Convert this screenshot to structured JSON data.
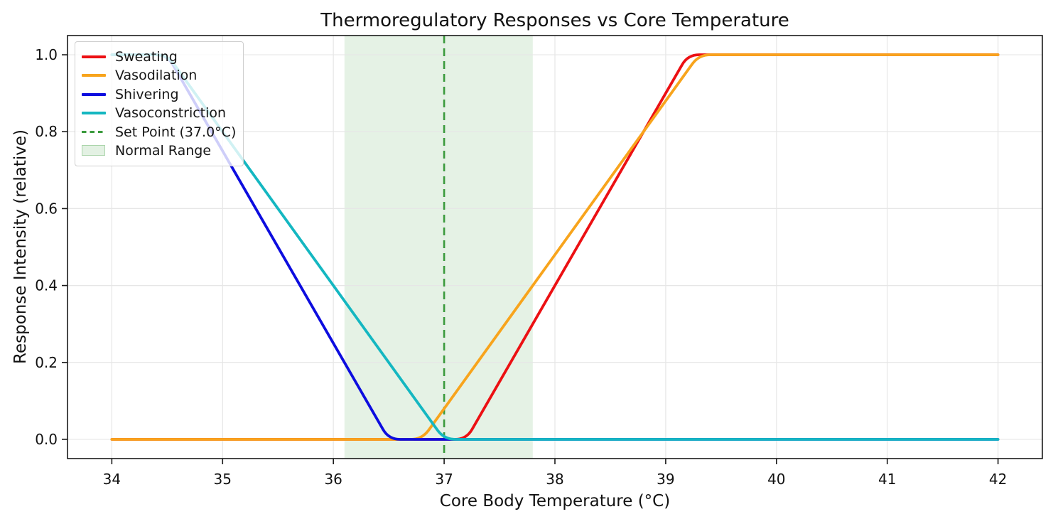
{
  "chart_data": {
    "type": "line",
    "title": "Thermoregulatory Responses vs Core Temperature",
    "xlabel": "Core Body Temperature (°C)",
    "ylabel": "Response Intensity (relative)",
    "xlim": [
      33.6,
      42.4
    ],
    "ylim": [
      -0.05,
      1.05
    ],
    "xticks": [
      "34",
      "35",
      "36",
      "37",
      "38",
      "39",
      "40",
      "41",
      "42"
    ],
    "yticks": [
      "0.0",
      "0.2",
      "0.4",
      "0.6",
      "0.8",
      "1.0"
    ],
    "grid": true,
    "legend_position": "upper left",
    "series": [
      {
        "name": "Sweating",
        "color": "#ec1013",
        "points": [
          [
            34,
            0
          ],
          [
            37.2,
            0
          ],
          [
            39.2,
            1
          ],
          [
            42,
            1
          ]
        ]
      },
      {
        "name": "Vasodilation",
        "color": "#f8a41c",
        "points": [
          [
            34,
            0
          ],
          [
            36.8,
            0
          ],
          [
            39.3,
            1
          ],
          [
            42,
            1
          ]
        ]
      },
      {
        "name": "Shivering",
        "color": "#0d0ddf",
        "points": [
          [
            34,
            1
          ],
          [
            34.5,
            1
          ],
          [
            36.5,
            0
          ],
          [
            42,
            0
          ]
        ]
      },
      {
        "name": "Vasoconstriction",
        "color": "#14b7c1",
        "points": [
          [
            34,
            1
          ],
          [
            34.5,
            1
          ],
          [
            37.0,
            0
          ],
          [
            42,
            0
          ]
        ]
      }
    ],
    "setpoint": {
      "label": "Set Point (37.0°C)",
      "x": 37.0,
      "color": "#3a9a3c",
      "style": "dashed"
    },
    "normal_range": {
      "label": "Normal Range",
      "from": 36.1,
      "to": 37.8,
      "color": "#008000",
      "opacity": 0.1
    },
    "grid_color": "#e6e6e6",
    "axis_color": "#1a1a1a"
  }
}
